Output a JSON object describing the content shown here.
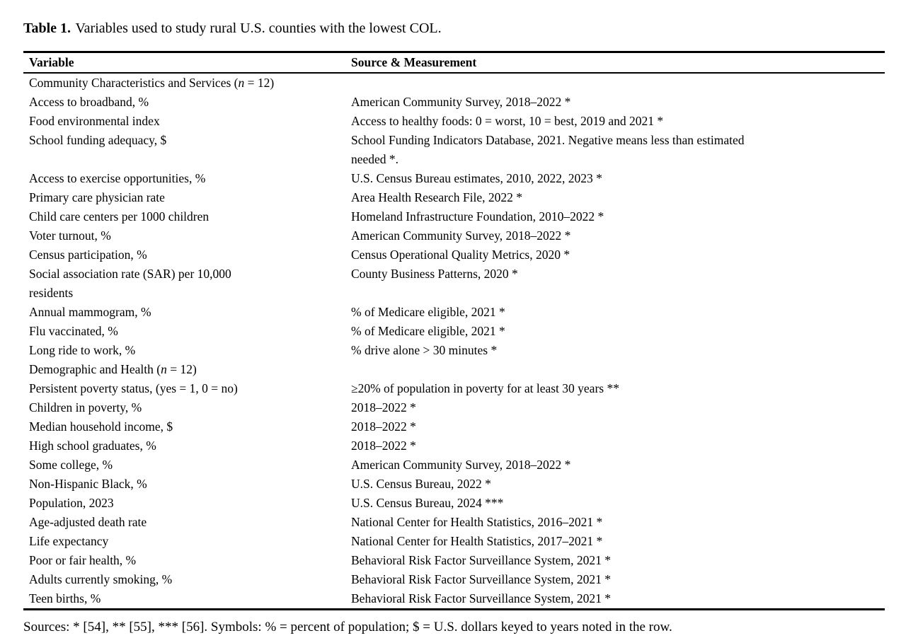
{
  "caption": {
    "label": "Table 1.",
    "text": "Variables used to study rural U.S. counties with the lowest COL."
  },
  "table": {
    "columns": [
      "Variable",
      "Source & Measurement"
    ],
    "rows": [
      {
        "type": "section",
        "variable": "Community Characteristics and Services (n = 12)",
        "source": ""
      },
      {
        "type": "data",
        "variable": "Access to broadband, %",
        "source": "American Community Survey, 2018–2022 *"
      },
      {
        "type": "data",
        "variable": "Food environmental index",
        "source": "Access to healthy foods: 0 = worst, 10 = best, 2019 and 2021 *"
      },
      {
        "type": "data",
        "variable": "School funding adequacy, $",
        "source": "School Funding Indicators Database, 2021. Negative means less than estimated\nneeded *."
      },
      {
        "type": "data",
        "variable": "Access to exercise opportunities, %",
        "source": "U.S. Census Bureau estimates, 2010, 2022, 2023 *"
      },
      {
        "type": "data",
        "variable": "Primary care physician rate",
        "source": "Area Health Research File, 2022 *"
      },
      {
        "type": "data",
        "variable": "Child care centers per 1000 children",
        "source": "Homeland Infrastructure Foundation, 2010–2022 *"
      },
      {
        "type": "data",
        "variable": "Voter turnout, %",
        "source": "American Community Survey, 2018–2022 *"
      },
      {
        "type": "data",
        "variable": "Census participation, %",
        "source": "Census Operational Quality Metrics, 2020 *"
      },
      {
        "type": "data",
        "variable": "Social association rate (SAR) per 10,000\nresidents",
        "source": "County Business Patterns, 2020 *"
      },
      {
        "type": "data",
        "variable": "Annual mammogram, %",
        "source": "% of Medicare eligible, 2021 *"
      },
      {
        "type": "data",
        "variable": "Flu vaccinated, %",
        "source": "% of Medicare eligible, 2021 *"
      },
      {
        "type": "data",
        "variable": "Long ride to work, %",
        "source": "% drive alone > 30 minutes *"
      },
      {
        "type": "section",
        "variable": "Demographic and Health (n = 12)",
        "source": ""
      },
      {
        "type": "data",
        "variable": "Persistent poverty status, (yes = 1, 0 = no)",
        "source": "≥20% of population in poverty for at least 30 years **"
      },
      {
        "type": "data",
        "variable": "Children in poverty, %",
        "source": "2018–2022 *"
      },
      {
        "type": "data",
        "variable": "Median household income, $",
        "source": "2018–2022 *"
      },
      {
        "type": "data",
        "variable": "High school graduates, %",
        "source": "2018–2022 *"
      },
      {
        "type": "data",
        "variable": "Some college, %",
        "source": "American Community Survey, 2018–2022 *"
      },
      {
        "type": "data",
        "variable": "Non-Hispanic Black, %",
        "source": "U.S. Census Bureau, 2022 *"
      },
      {
        "type": "data",
        "variable": "Population, 2023",
        "source": "U.S. Census Bureau, 2024 ***"
      },
      {
        "type": "data",
        "variable": "Age-adjusted death rate",
        "source": "National Center for Health Statistics, 2016–2021 *"
      },
      {
        "type": "data",
        "variable": "Life expectancy",
        "source": "National Center for Health Statistics, 2017–2021 *"
      },
      {
        "type": "data",
        "variable": "Poor or fair health, %",
        "source": "Behavioral Risk Factor Surveillance System, 2021 *"
      },
      {
        "type": "data",
        "variable": "Adults currently smoking, %",
        "source": "Behavioral Risk Factor Surveillance System, 2021 *"
      },
      {
        "type": "data",
        "variable": "Teen births, %",
        "source": "Behavioral Risk Factor Surveillance System, 2021 *"
      }
    ]
  },
  "footnote": "Sources: * [54], ** [55], *** [56]. Symbols: % = percent of population; $ = U.S. dollars keyed to years noted in the row."
}
